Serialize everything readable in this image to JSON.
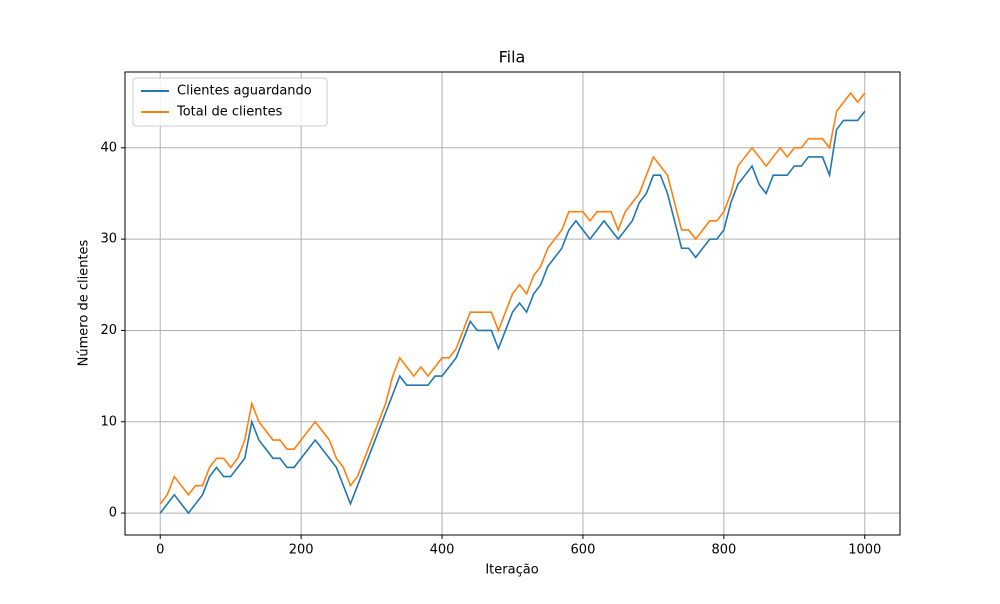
{
  "chart_data": {
    "type": "line",
    "title": "Fila",
    "xlabel": "Iteração",
    "ylabel": "Número de clientes",
    "x": [
      0,
      10,
      20,
      30,
      40,
      50,
      60,
      70,
      80,
      90,
      100,
      110,
      120,
      130,
      140,
      150,
      160,
      170,
      180,
      190,
      200,
      210,
      220,
      230,
      240,
      250,
      260,
      270,
      280,
      290,
      300,
      310,
      320,
      330,
      340,
      350,
      360,
      370,
      380,
      390,
      400,
      410,
      420,
      430,
      440,
      450,
      460,
      470,
      480,
      490,
      500,
      510,
      520,
      530,
      540,
      550,
      560,
      570,
      580,
      590,
      600,
      610,
      620,
      630,
      640,
      650,
      660,
      670,
      680,
      690,
      700,
      710,
      720,
      730,
      740,
      750,
      760,
      770,
      780,
      790,
      800,
      810,
      820,
      830,
      840,
      850,
      860,
      870,
      880,
      890,
      900,
      910,
      920,
      930,
      940,
      950,
      960,
      970,
      980,
      990,
      1000
    ],
    "series": [
      {
        "name": "Clientes aguardando",
        "color": "#1f77b4",
        "values": [
          0,
          1,
          2,
          1,
          0,
          1,
          2,
          4,
          5,
          4,
          4,
          5,
          6,
          10,
          8,
          7,
          6,
          6,
          5,
          5,
          6,
          7,
          8,
          7,
          6,
          5,
          3,
          1,
          3,
          5,
          7,
          9,
          11,
          13,
          15,
          14,
          14,
          14,
          14,
          15,
          15,
          16,
          17,
          19,
          21,
          20,
          20,
          20,
          18,
          20,
          22,
          23,
          22,
          24,
          25,
          27,
          28,
          29,
          31,
          32,
          31,
          30,
          31,
          32,
          31,
          30,
          31,
          32,
          34,
          35,
          37,
          37,
          35,
          32,
          29,
          29,
          28,
          29,
          30,
          30,
          31,
          34,
          36,
          37,
          38,
          36,
          35,
          37,
          37,
          37,
          38,
          38,
          39,
          39,
          39,
          37,
          42,
          43,
          43,
          43,
          44
        ]
      },
      {
        "name": "Total de clientes",
        "color": "#ff7f0e",
        "values": [
          1,
          2,
          4,
          3,
          2,
          3,
          3,
          5,
          6,
          6,
          5,
          6,
          8,
          12,
          10,
          9,
          8,
          8,
          7,
          7,
          8,
          9,
          10,
          9,
          8,
          6,
          5,
          3,
          4,
          6,
          8,
          10,
          12,
          15,
          17,
          16,
          15,
          16,
          15,
          16,
          17,
          17,
          18,
          20,
          22,
          22,
          22,
          22,
          20,
          22,
          24,
          25,
          24,
          26,
          27,
          29,
          30,
          31,
          33,
          33,
          33,
          32,
          33,
          33,
          33,
          31,
          33,
          34,
          35,
          37,
          39,
          38,
          37,
          34,
          31,
          31,
          30,
          31,
          32,
          32,
          33,
          35,
          38,
          39,
          40,
          39,
          38,
          39,
          40,
          39,
          40,
          40,
          41,
          41,
          41,
          40,
          44,
          45,
          46,
          45,
          46
        ]
      }
    ],
    "xlim": [
      -50,
      1050
    ],
    "ylim": [
      -2.4,
      48.3
    ],
    "xticks": [
      0,
      200,
      400,
      600,
      800,
      1000
    ],
    "yticks": [
      0,
      10,
      20,
      30,
      40
    ],
    "grid": true,
    "legend": "upper left"
  }
}
